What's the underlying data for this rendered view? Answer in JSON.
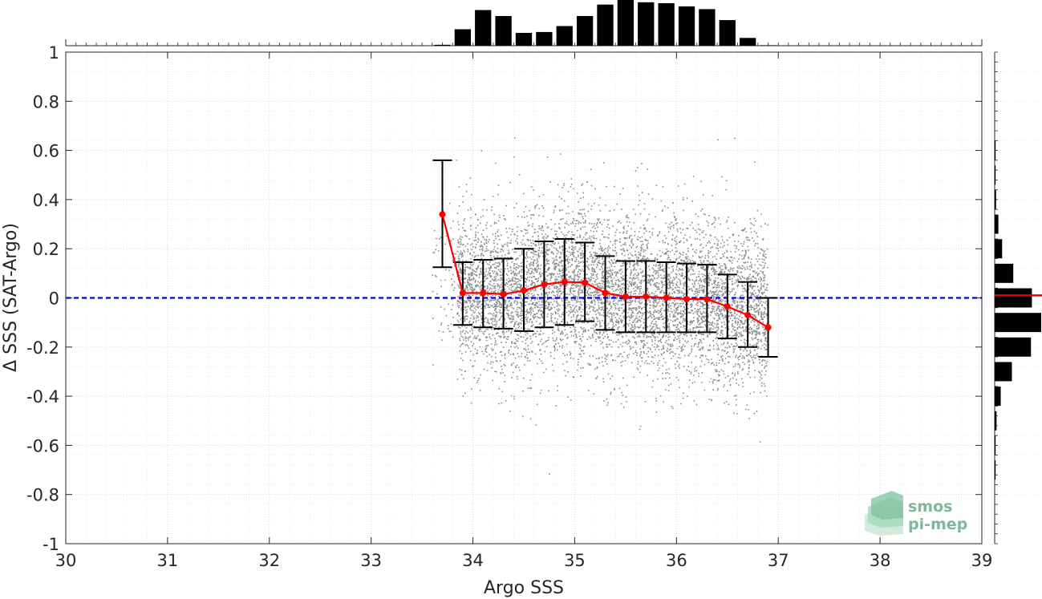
{
  "chart_data": {
    "type": "scatter",
    "xlabel": "Argo SSS",
    "ylabel": "Δ SSS (SAT-Argo)",
    "xlim": [
      30,
      39
    ],
    "ylim": [
      -1,
      1
    ],
    "xticks": [
      "30",
      "31",
      "32",
      "33",
      "34",
      "35",
      "36",
      "37",
      "38",
      "39"
    ],
    "yticks": [
      "-1",
      "-0.8",
      "-0.6",
      "-0.4",
      "-0.2",
      "0",
      "0.2",
      "0.4",
      "0.6",
      "0.8",
      "1"
    ],
    "grid": true,
    "reference_line": {
      "y": 0,
      "style": "dashed",
      "color": "#0000dd"
    },
    "scatter_cloud": {
      "color": "#8c8c8c",
      "x_range": [
        33.6,
        36.9
      ],
      "y_center": 0.0,
      "y_spread": 0.15
    },
    "binned_mean": {
      "color": "#ff0000",
      "x": [
        33.7,
        33.9,
        34.1,
        34.3,
        34.5,
        34.7,
        34.9,
        35.1,
        35.3,
        35.5,
        35.7,
        35.9,
        36.1,
        36.3,
        36.5,
        36.7,
        36.9
      ],
      "y": [
        0.34,
        0.02,
        0.02,
        0.015,
        0.03,
        0.055,
        0.065,
        0.062,
        0.02,
        0.005,
        0.005,
        0.0,
        -0.005,
        -0.005,
        -0.035,
        -0.07,
        -0.12
      ],
      "upper": [
        0.56,
        0.145,
        0.155,
        0.16,
        0.2,
        0.23,
        0.24,
        0.225,
        0.17,
        0.15,
        0.15,
        0.145,
        0.14,
        0.135,
        0.095,
        0.065,
        0.0
      ],
      "lower": [
        0.125,
        -0.11,
        -0.12,
        -0.125,
        -0.135,
        -0.12,
        -0.11,
        -0.095,
        -0.13,
        -0.14,
        -0.14,
        -0.14,
        -0.14,
        -0.14,
        -0.165,
        -0.2,
        -0.24
      ]
    },
    "top_histogram": {
      "x": [
        33.7,
        33.9,
        34.1,
        34.3,
        34.5,
        34.7,
        34.9,
        35.1,
        35.3,
        35.5,
        35.7,
        35.9,
        36.1,
        36.3,
        36.5,
        36.7,
        36.9
      ],
      "heights": [
        0.02,
        0.36,
        0.78,
        0.65,
        0.28,
        0.3,
        0.43,
        0.65,
        0.9,
        1.0,
        0.95,
        0.93,
        0.86,
        0.8,
        0.56,
        0.17,
        0.01
      ]
    },
    "right_histogram": {
      "y": [
        0.6,
        0.5,
        0.4,
        0.3,
        0.2,
        0.1,
        0.0,
        -0.1,
        -0.2,
        -0.3,
        -0.4,
        -0.5,
        -0.6,
        -0.7
      ],
      "widths": [
        0.02,
        0.02,
        0.03,
        0.08,
        0.16,
        0.4,
        0.8,
        1.0,
        0.78,
        0.37,
        0.13,
        0.04,
        0.02,
        0.02
      ],
      "mean_line_y": 0.01,
      "mean_line_color": "#dd0000"
    },
    "logo": {
      "line1": "smos",
      "line2": "pi-mep"
    }
  }
}
